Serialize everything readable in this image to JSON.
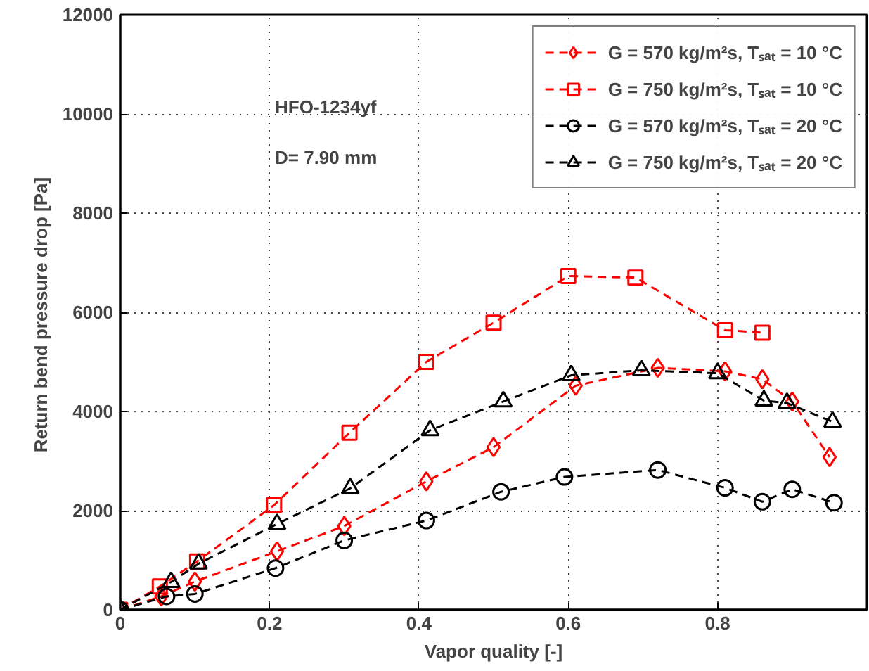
{
  "chart_data": {
    "type": "line",
    "xlabel": "Vapor quality [-]",
    "ylabel": "Return bend pressure drop  [Pa]",
    "xlim": [
      0,
      1
    ],
    "ylim": [
      0,
      12000
    ],
    "xticks": [
      0,
      0.2,
      0.4,
      0.6,
      0.8
    ],
    "yticks": [
      0,
      2000,
      4000,
      6000,
      8000,
      10000,
      12000
    ],
    "grid": true,
    "legend": "top right",
    "line_style": "dashed",
    "annotations": [
      "HFO-1234yf",
      "D= 7.90 mm"
    ],
    "series": [
      {
        "name": "G = 570 kg/m²s, Tₛₐₜ = 10 °C",
        "color": "#ff0000",
        "marker": "diamond",
        "x": [
          0,
          0.055,
          0.1,
          0.21,
          0.3,
          0.41,
          0.5,
          0.61,
          0.72,
          0.81,
          0.86,
          0.9,
          0.95
        ],
        "values": [
          0,
          270,
          570,
          1180,
          1690,
          2590,
          3280,
          4520,
          4880,
          4810,
          4650,
          4200,
          3080
        ]
      },
      {
        "name": "G = 750 kg/m²s, Tₛₐₜ = 10 °C",
        "color": "#ff0000",
        "marker": "square",
        "x": [
          0,
          0.053,
          0.103,
          0.206,
          0.307,
          0.41,
          0.5,
          0.6,
          0.69,
          0.81,
          0.86
        ],
        "values": [
          0,
          470,
          975,
          2110,
          3570,
          5000,
          5790,
          6730,
          6700,
          5640,
          5590
        ]
      },
      {
        "name": "G = 570 kg/m²s, Tₛₐₜ = 20 °C",
        "color": "#000000",
        "marker": "circle",
        "x": [
          0,
          0.062,
          0.1,
          0.208,
          0.3,
          0.41,
          0.51,
          0.595,
          0.72,
          0.81,
          0.86,
          0.9,
          0.956
        ],
        "values": [
          0,
          270,
          320,
          840,
          1400,
          1800,
          2380,
          2680,
          2820,
          2460,
          2180,
          2430,
          2160
        ]
      },
      {
        "name": "G = 750 kg/m²s, Tₛₐₜ = 20 °C",
        "color": "#000000",
        "marker": "triangle",
        "x": [
          0,
          0.068,
          0.105,
          0.21,
          0.308,
          0.415,
          0.513,
          0.604,
          0.698,
          0.8,
          0.862,
          0.893,
          0.954
        ],
        "values": [
          0,
          560,
          930,
          1730,
          2450,
          3620,
          4200,
          4730,
          4830,
          4770,
          4220,
          4170,
          3790
        ]
      }
    ]
  }
}
